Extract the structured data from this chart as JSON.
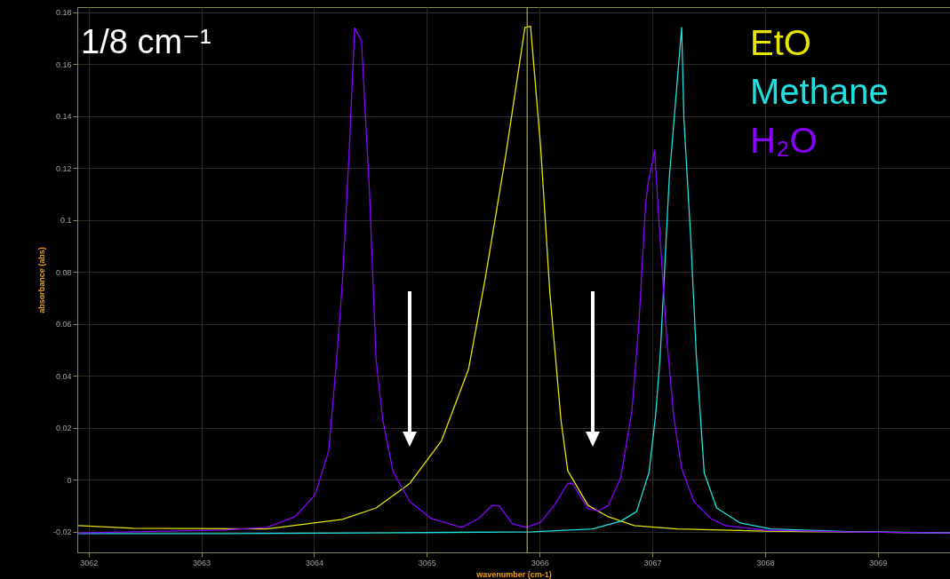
{
  "chart_data": {
    "type": "line",
    "title": "1/8 cm⁻¹",
    "xlabel": "wavenumber (cm-1)",
    "ylabel": "absorbance (abs)",
    "xlim": [
      3061.9,
      3069.64
    ],
    "xticks": [
      3062,
      3063,
      3064,
      3065,
      3066,
      3067,
      3068,
      3069
    ],
    "ylim": [
      -0.028,
      0.182
    ],
    "yticks": [
      -0.02,
      0,
      0.02,
      0.04,
      0.06,
      0.08,
      0.1,
      0.12,
      0.14,
      0.16,
      0.18
    ],
    "grid": true,
    "legend": "top right",
    "line_style": "solid",
    "ref_lines": [
      {
        "axis": "x",
        "value": 3065.89,
        "color": "#a8a848"
      }
    ],
    "series": [
      {
        "name": "EtO",
        "color": "#e6e600",
        "x": [
          3061.91,
          3062.4,
          3063.58,
          3064.25,
          3064.55,
          3064.85,
          3065.13,
          3065.37,
          3065.52,
          3065.7,
          3065.87,
          3065.92,
          3066.01,
          3066.09,
          3066.19,
          3066.25,
          3066.43,
          3066.61,
          3066.84,
          3067.22,
          3068.0,
          3069.64
        ],
        "values": [
          -0.0177,
          -0.0187,
          -0.019,
          -0.0153,
          -0.0109,
          -0.0014,
          0.015,
          0.0426,
          0.078,
          0.125,
          0.1742,
          0.1746,
          0.1278,
          0.0726,
          0.0228,
          0.0034,
          -0.0099,
          -0.0143,
          -0.0177,
          -0.019,
          -0.0198,
          -0.0205
        ]
      },
      {
        "name": "Methane",
        "color": "#1ee0e0",
        "x": [
          3061.91,
          3063.19,
          3064.5,
          3065.94,
          3066.47,
          3066.72,
          3066.86,
          3066.97,
          3067.03,
          3067.07,
          3067.11,
          3067.15,
          3067.26,
          3067.28,
          3067.34,
          3067.39,
          3067.46,
          3067.57,
          3067.78,
          3068.05,
          3068.8,
          3069.64
        ],
        "values": [
          -0.0208,
          -0.0208,
          -0.0205,
          -0.0201,
          -0.019,
          -0.016,
          -0.0123,
          0.0027,
          0.0252,
          0.048,
          0.082,
          0.116,
          0.1742,
          0.139,
          0.0934,
          0.048,
          0.0027,
          -0.0109,
          -0.0167,
          -0.019,
          -0.0201,
          -0.0205
        ]
      },
      {
        "name": "H₂O",
        "color": "#8a00ff",
        "x": [
          3061.91,
          3062.4,
          3063.19,
          3063.58,
          3063.83,
          3064.01,
          3064.13,
          3064.2,
          3064.25,
          3064.31,
          3064.36,
          3064.42,
          3064.49,
          3064.55,
          3064.61,
          3064.7,
          3064.85,
          3065.04,
          3065.31,
          3065.46,
          3065.58,
          3065.64,
          3065.76,
          3065.88,
          3066.01,
          3066.13,
          3066.25,
          3066.29,
          3066.43,
          3066.52,
          3066.61,
          3066.72,
          3066.82,
          3066.88,
          3066.94,
          3066.96,
          3067.02,
          3067.06,
          3067.13,
          3067.19,
          3067.26,
          3067.37,
          3067.52,
          3067.65,
          3067.99,
          3068.78,
          3069.64
        ],
        "values": [
          -0.0205,
          -0.0201,
          -0.0194,
          -0.0184,
          -0.0143,
          -0.0058,
          0.0112,
          0.0463,
          0.0753,
          0.125,
          0.174,
          0.169,
          0.112,
          0.0463,
          0.0228,
          0.0031,
          -0.0085,
          -0.015,
          -0.0184,
          -0.015,
          -0.0099,
          -0.0101,
          -0.017,
          -0.0184,
          -0.0164,
          -0.0099,
          -0.0014,
          -0.0014,
          -0.0112,
          -0.012,
          -0.0099,
          0.0007,
          0.027,
          0.0596,
          0.1055,
          0.1135,
          0.127,
          0.0988,
          0.0532,
          0.0242,
          0.0044,
          -0.0085,
          -0.015,
          -0.0177,
          -0.0194,
          -0.0202,
          -0.0205
        ]
      }
    ]
  }
}
